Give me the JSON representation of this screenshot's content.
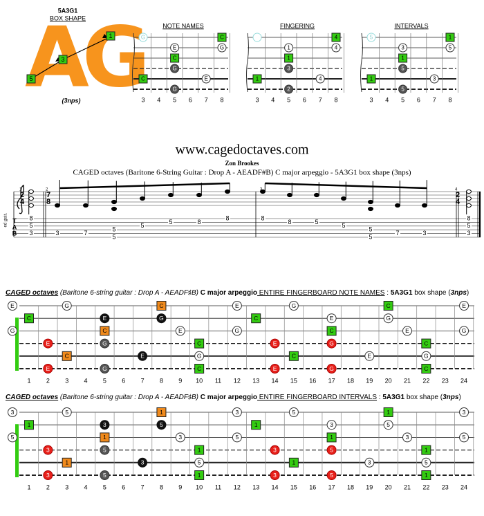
{
  "logo": {
    "shape": "5A3G1",
    "caption": "BOX SHAPE",
    "letters": "AG",
    "boxes": [
      "5",
      "3",
      "1"
    ],
    "nps": "(3nps)"
  },
  "diagrams": [
    {
      "title": "NOTE NAMES",
      "frets": [
        3,
        4,
        5,
        6,
        7,
        8
      ],
      "notes": [
        [
          0,
          3,
          "G",
          "faded"
        ],
        [
          0,
          8,
          "C",
          "green"
        ],
        [
          1,
          5,
          "E",
          "plain"
        ],
        [
          1,
          8,
          "G",
          "plain"
        ],
        [
          2,
          5,
          "C",
          "green"
        ],
        [
          3,
          5,
          "G",
          "gray"
        ],
        [
          4,
          3,
          "C",
          "green"
        ],
        [
          4,
          7,
          "E",
          "plain"
        ],
        [
          5,
          5,
          "G",
          "gray"
        ]
      ]
    },
    {
      "title": "FINGERING",
      "frets": [
        3,
        4,
        5,
        6,
        7,
        8
      ],
      "notes": [
        [
          0,
          3,
          null,
          "faded"
        ],
        [
          0,
          8,
          "4",
          "green"
        ],
        [
          1,
          5,
          "1",
          "plain"
        ],
        [
          1,
          8,
          "4",
          "plain"
        ],
        [
          2,
          5,
          "1",
          "green"
        ],
        [
          3,
          5,
          "3",
          "gray"
        ],
        [
          4,
          3,
          "1",
          "green"
        ],
        [
          4,
          7,
          "4",
          "plain"
        ],
        [
          5,
          5,
          "2",
          "gray"
        ]
      ]
    },
    {
      "title": "INTERVALS",
      "frets": [
        3,
        4,
        5,
        6,
        7,
        8
      ],
      "notes": [
        [
          0,
          3,
          "5",
          "faded"
        ],
        [
          0,
          8,
          "1",
          "green"
        ],
        [
          1,
          5,
          "3",
          "plain"
        ],
        [
          1,
          8,
          "5",
          "plain"
        ],
        [
          2,
          5,
          "1",
          "green"
        ],
        [
          3,
          5,
          "5",
          "gray"
        ],
        [
          4,
          3,
          "1",
          "green"
        ],
        [
          4,
          7,
          "3",
          "plain"
        ],
        [
          5,
          5,
          "5",
          "gray"
        ]
      ]
    }
  ],
  "score": {
    "site": "www.cagedoctaves.com",
    "author": "Zon Brookes",
    "subtitle": "CAGED octaves (Baritone 6-String Guitar : Drop A - AEADF#B) C major arpeggio - 5A3G1 box shape (3nps)",
    "instrument": "ed guit.",
    "tab": [
      "T",
      "A",
      "B"
    ],
    "measures": [
      {
        "number": 1,
        "time": [
          2,
          4
        ],
        "events": [
          [
            [
              1,
              8
            ],
            [
              3,
              5
            ],
            [
              5,
              3
            ]
          ]
        ]
      },
      {
        "number": 2,
        "time": [
          7,
          8
        ],
        "events": [
          [
            [
              5,
              3
            ]
          ],
          [
            [
              5,
              7
            ]
          ],
          [
            [
              4,
              5
            ],
            [
              6,
              5
            ]
          ],
          [
            [
              3,
              5
            ]
          ],
          [
            [
              2,
              5
            ]
          ],
          [
            [
              2,
              8
            ]
          ],
          [
            [
              1,
              8
            ]
          ]
        ]
      },
      {
        "number": 3,
        "events": [
          [
            [
              1,
              8
            ]
          ],
          [
            [
              2,
              8
            ]
          ],
          [
            [
              2,
              5
            ]
          ],
          [
            [
              3,
              5
            ]
          ],
          [
            [
              4,
              5
            ],
            [
              6,
              5
            ]
          ],
          [
            [
              5,
              7
            ]
          ],
          [
            [
              5,
              3
            ]
          ]
        ]
      },
      {
        "number": 4,
        "time": [
          2,
          4
        ],
        "events": [
          [
            [
              1,
              8
            ],
            [
              3,
              5
            ],
            [
              5,
              3
            ]
          ]
        ]
      }
    ]
  },
  "fingerboards": [
    {
      "title": [
        {
          "text": "CAGED octaves",
          "style": "biu"
        },
        {
          "text": " (Baritone 6-string guitar : Drop A - AEADF♯B) ",
          "style": "i"
        },
        {
          "text": "C major arpeggio",
          "style": "b"
        },
        {
          "text": " ENTIRE FINGERBOARD NOTE NAMES",
          "style": "u"
        },
        {
          "text": " : ",
          "style": "n"
        },
        {
          "text": "5A3G1",
          "style": "b"
        },
        {
          "text": " box shape (",
          "style": "n"
        },
        {
          "text": "3nps",
          "style": "bi"
        },
        {
          "text": ")",
          "style": "n"
        }
      ],
      "frets": [
        1,
        2,
        3,
        4,
        5,
        6,
        7,
        8,
        9,
        10,
        11,
        12,
        13,
        14,
        15,
        16,
        17,
        18,
        19,
        20,
        21,
        22,
        23,
        24
      ],
      "notes": [
        [
          0,
          0,
          "E",
          "plain"
        ],
        [
          0,
          3,
          "G",
          "plain"
        ],
        [
          0,
          8,
          "C",
          "orange"
        ],
        [
          0,
          12,
          "E",
          "plain"
        ],
        [
          0,
          15,
          "G",
          "plain"
        ],
        [
          0,
          20,
          "C",
          "green"
        ],
        [
          0,
          24,
          "E",
          "plain"
        ],
        [
          1,
          1,
          "C",
          "green"
        ],
        [
          1,
          5,
          "E",
          "black"
        ],
        [
          1,
          8,
          "G",
          "black"
        ],
        [
          1,
          13,
          "C",
          "green"
        ],
        [
          1,
          17,
          "E",
          "plain"
        ],
        [
          1,
          20,
          "G",
          "plain"
        ],
        [
          2,
          0,
          "G",
          "plain"
        ],
        [
          2,
          5,
          "C",
          "orange"
        ],
        [
          2,
          9,
          "E",
          "plain"
        ],
        [
          2,
          12,
          "G",
          "plain"
        ],
        [
          2,
          17,
          "C",
          "green"
        ],
        [
          2,
          21,
          "E",
          "plain"
        ],
        [
          2,
          24,
          "G",
          "plain"
        ],
        [
          3,
          2,
          "E",
          "red"
        ],
        [
          3,
          5,
          "G",
          "gray"
        ],
        [
          3,
          10,
          "C",
          "green"
        ],
        [
          3,
          14,
          "E",
          "red"
        ],
        [
          3,
          17,
          "G",
          "red"
        ],
        [
          3,
          22,
          "C",
          "green"
        ],
        [
          4,
          3,
          "C",
          "orange"
        ],
        [
          4,
          7,
          "E",
          "black"
        ],
        [
          4,
          10,
          "G",
          "plain"
        ],
        [
          4,
          15,
          "C",
          "green"
        ],
        [
          4,
          19,
          "E",
          "plain"
        ],
        [
          4,
          22,
          "G",
          "plain"
        ],
        [
          5,
          2,
          "E",
          "red"
        ],
        [
          5,
          5,
          "G",
          "gray"
        ],
        [
          5,
          10,
          "C",
          "green"
        ],
        [
          5,
          14,
          "E",
          "red"
        ],
        [
          5,
          17,
          "G",
          "red"
        ],
        [
          5,
          22,
          "C",
          "green"
        ]
      ]
    },
    {
      "title": [
        {
          "text": "CAGED octaves",
          "style": "biu"
        },
        {
          "text": " (Baritone 6-string guitar : Drop A - AEADF♯B) ",
          "style": "i"
        },
        {
          "text": "C major arpeggio",
          "style": "b"
        },
        {
          "text": " ENTIRE FINGERBOARD INTERVALS",
          "style": "u"
        },
        {
          "text": " : ",
          "style": "n"
        },
        {
          "text": "5A3G1",
          "style": "b"
        },
        {
          "text": " box shape (",
          "style": "n"
        },
        {
          "text": "3nps",
          "style": "bi"
        },
        {
          "text": ")",
          "style": "n"
        }
      ],
      "frets": [
        1,
        2,
        3,
        4,
        5,
        6,
        7,
        8,
        9,
        10,
        11,
        12,
        13,
        14,
        15,
        16,
        17,
        18,
        19,
        20,
        21,
        22,
        23,
        24
      ],
      "notes": [
        [
          0,
          0,
          "3",
          "plain"
        ],
        [
          0,
          3,
          "5",
          "plain"
        ],
        [
          0,
          8,
          "1",
          "orange"
        ],
        [
          0,
          12,
          "3",
          "plain"
        ],
        [
          0,
          15,
          "5",
          "plain"
        ],
        [
          0,
          20,
          "1",
          "green"
        ],
        [
          0,
          24,
          "3",
          "plain"
        ],
        [
          1,
          1,
          "1",
          "green"
        ],
        [
          1,
          5,
          "3",
          "black"
        ],
        [
          1,
          8,
          "5",
          "black"
        ],
        [
          1,
          13,
          "1",
          "green"
        ],
        [
          1,
          17,
          "3",
          "plain"
        ],
        [
          1,
          20,
          "5",
          "plain"
        ],
        [
          2,
          0,
          "5",
          "plain"
        ],
        [
          2,
          5,
          "1",
          "orange"
        ],
        [
          2,
          9,
          "3",
          "plain"
        ],
        [
          2,
          12,
          "5",
          "plain"
        ],
        [
          2,
          17,
          "1",
          "green"
        ],
        [
          2,
          21,
          "3",
          "plain"
        ],
        [
          2,
          24,
          "5",
          "plain"
        ],
        [
          3,
          2,
          "3",
          "red"
        ],
        [
          3,
          5,
          "5",
          "gray"
        ],
        [
          3,
          10,
          "1",
          "green"
        ],
        [
          3,
          14,
          "3",
          "red"
        ],
        [
          3,
          17,
          "5",
          "red"
        ],
        [
          3,
          22,
          "1",
          "green"
        ],
        [
          4,
          3,
          "1",
          "orange"
        ],
        [
          4,
          7,
          "3",
          "black"
        ],
        [
          4,
          10,
          "5",
          "plain"
        ],
        [
          4,
          15,
          "1",
          "green"
        ],
        [
          4,
          19,
          "3",
          "plain"
        ],
        [
          4,
          22,
          "5",
          "plain"
        ],
        [
          5,
          2,
          "3",
          "red"
        ],
        [
          5,
          5,
          "5",
          "gray"
        ],
        [
          5,
          10,
          "1",
          "green"
        ],
        [
          5,
          14,
          "3",
          "red"
        ],
        [
          5,
          17,
          "5",
          "red"
        ],
        [
          5,
          22,
          "1",
          "green"
        ]
      ]
    }
  ]
}
